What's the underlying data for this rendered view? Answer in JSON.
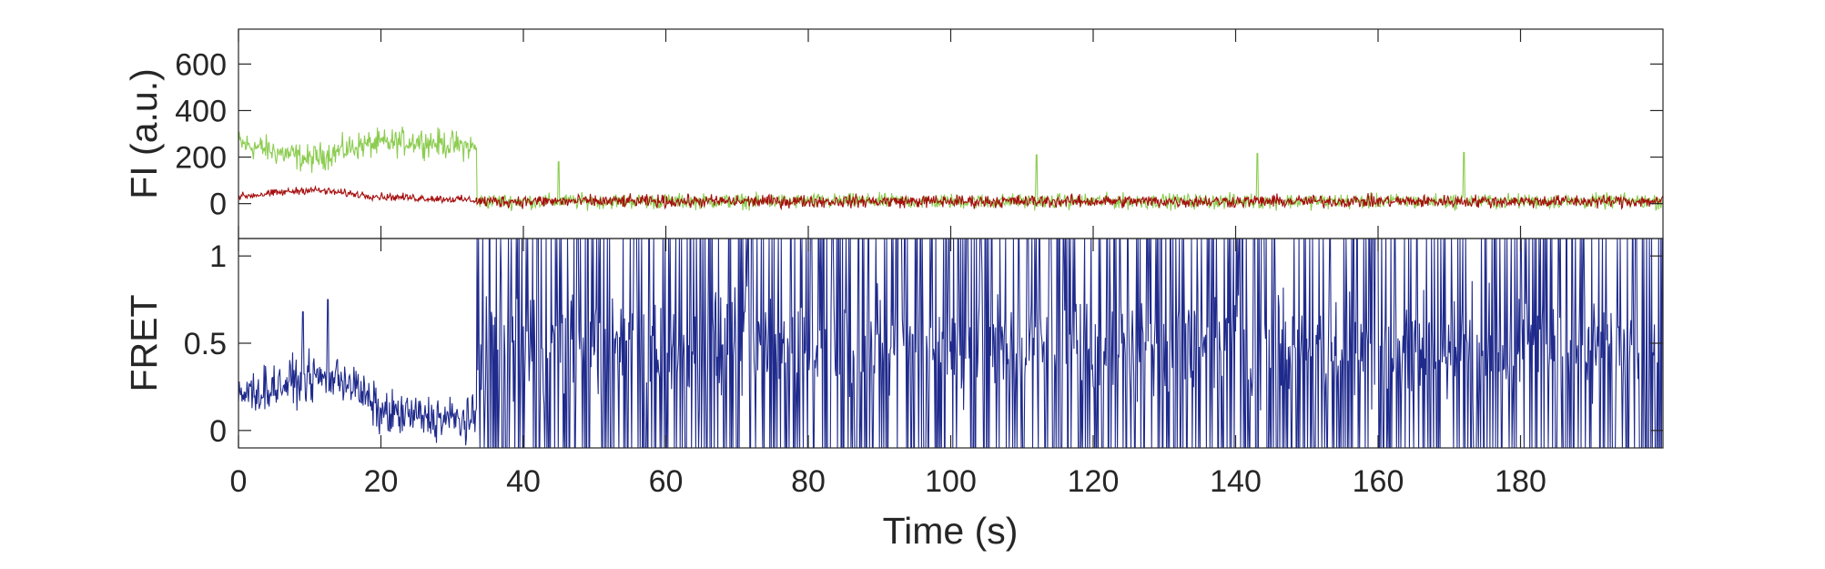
{
  "chart_data": [
    {
      "type": "line",
      "ylabel": "FI (a.u.)",
      "xlim": [
        0,
        200
      ],
      "ylim": [
        -150,
        750
      ],
      "yticks": [
        0,
        200,
        400,
        600
      ],
      "ytick_labels": [
        "0",
        "200",
        "400",
        "600"
      ],
      "grid": false,
      "series": [
        {
          "color": "#8ccc50",
          "segments": [
            {
              "x_from": 0,
              "x_to": 33.5,
              "y_first": 260,
              "y_last": 240,
              "mean_trend": [
                [
                  0,
                  260
                ],
                [
                  10,
                  190
                ],
                [
                  17,
                  250
                ],
                [
                  25,
                  270
                ],
                [
                  33.5,
                  240
                ]
              ],
              "noise_amplitude": 55
            },
            {
              "x_from": 33.5,
              "x_to": 200,
              "mean": 10,
              "noise_amplitude": 30,
              "spikes": [
                [
                  45,
                  180
                ],
                [
                  112,
                  210
                ],
                [
                  143,
                  215
                ],
                [
                  172,
                  220
                ]
              ]
            }
          ]
        },
        {
          "color": "#a50e0e",
          "segments": [
            {
              "x_from": 0,
              "x_to": 33.5,
              "mean_trend": [
                [
                  0,
                  30
                ],
                [
                  10,
                  60
                ],
                [
                  20,
                  30
                ],
                [
                  33.5,
                  15
                ]
              ],
              "noise_amplitude": 15
            },
            {
              "x_from": 33.5,
              "x_to": 200,
              "mean": 10,
              "noise_amplitude": 25
            }
          ]
        }
      ]
    },
    {
      "type": "line",
      "xlabel": "Time (s)",
      "ylabel": "FRET",
      "xlim": [
        0,
        200
      ],
      "ylim": [
        -0.1,
        1.1
      ],
      "xticks": [
        0,
        20,
        40,
        60,
        80,
        100,
        120,
        140,
        160,
        180
      ],
      "xtick_labels": [
        "0",
        "20",
        "40",
        "60",
        "80",
        "100",
        "120",
        "140",
        "160",
        "180"
      ],
      "yticks": [
        0,
        0.5,
        1
      ],
      "ytick_labels": [
        "0",
        "0.5",
        "1"
      ],
      "grid": false,
      "series": [
        {
          "color": "#1f2a8c",
          "segments": [
            {
              "x_from": 0,
              "x_to": 33.5,
              "mean_trend": [
                [
                  0,
                  0.2
                ],
                [
                  10,
                  0.3
                ],
                [
                  15,
                  0.3
                ],
                [
                  20,
                  0.1
                ],
                [
                  33.5,
                  0.05
                ]
              ],
              "noise_amplitude": 0.12,
              "peaks": [
                [
                  9,
                  0.68
                ],
                [
                  12.5,
                  0.75
                ]
              ]
            },
            {
              "x_from": 33.5,
              "x_to": 200,
              "range": [
                -0.1,
                1.1
              ],
              "behavior": "rapid switching between 0 and 1 with frequent clipping at both limits"
            }
          ]
        }
      ]
    }
  ]
}
